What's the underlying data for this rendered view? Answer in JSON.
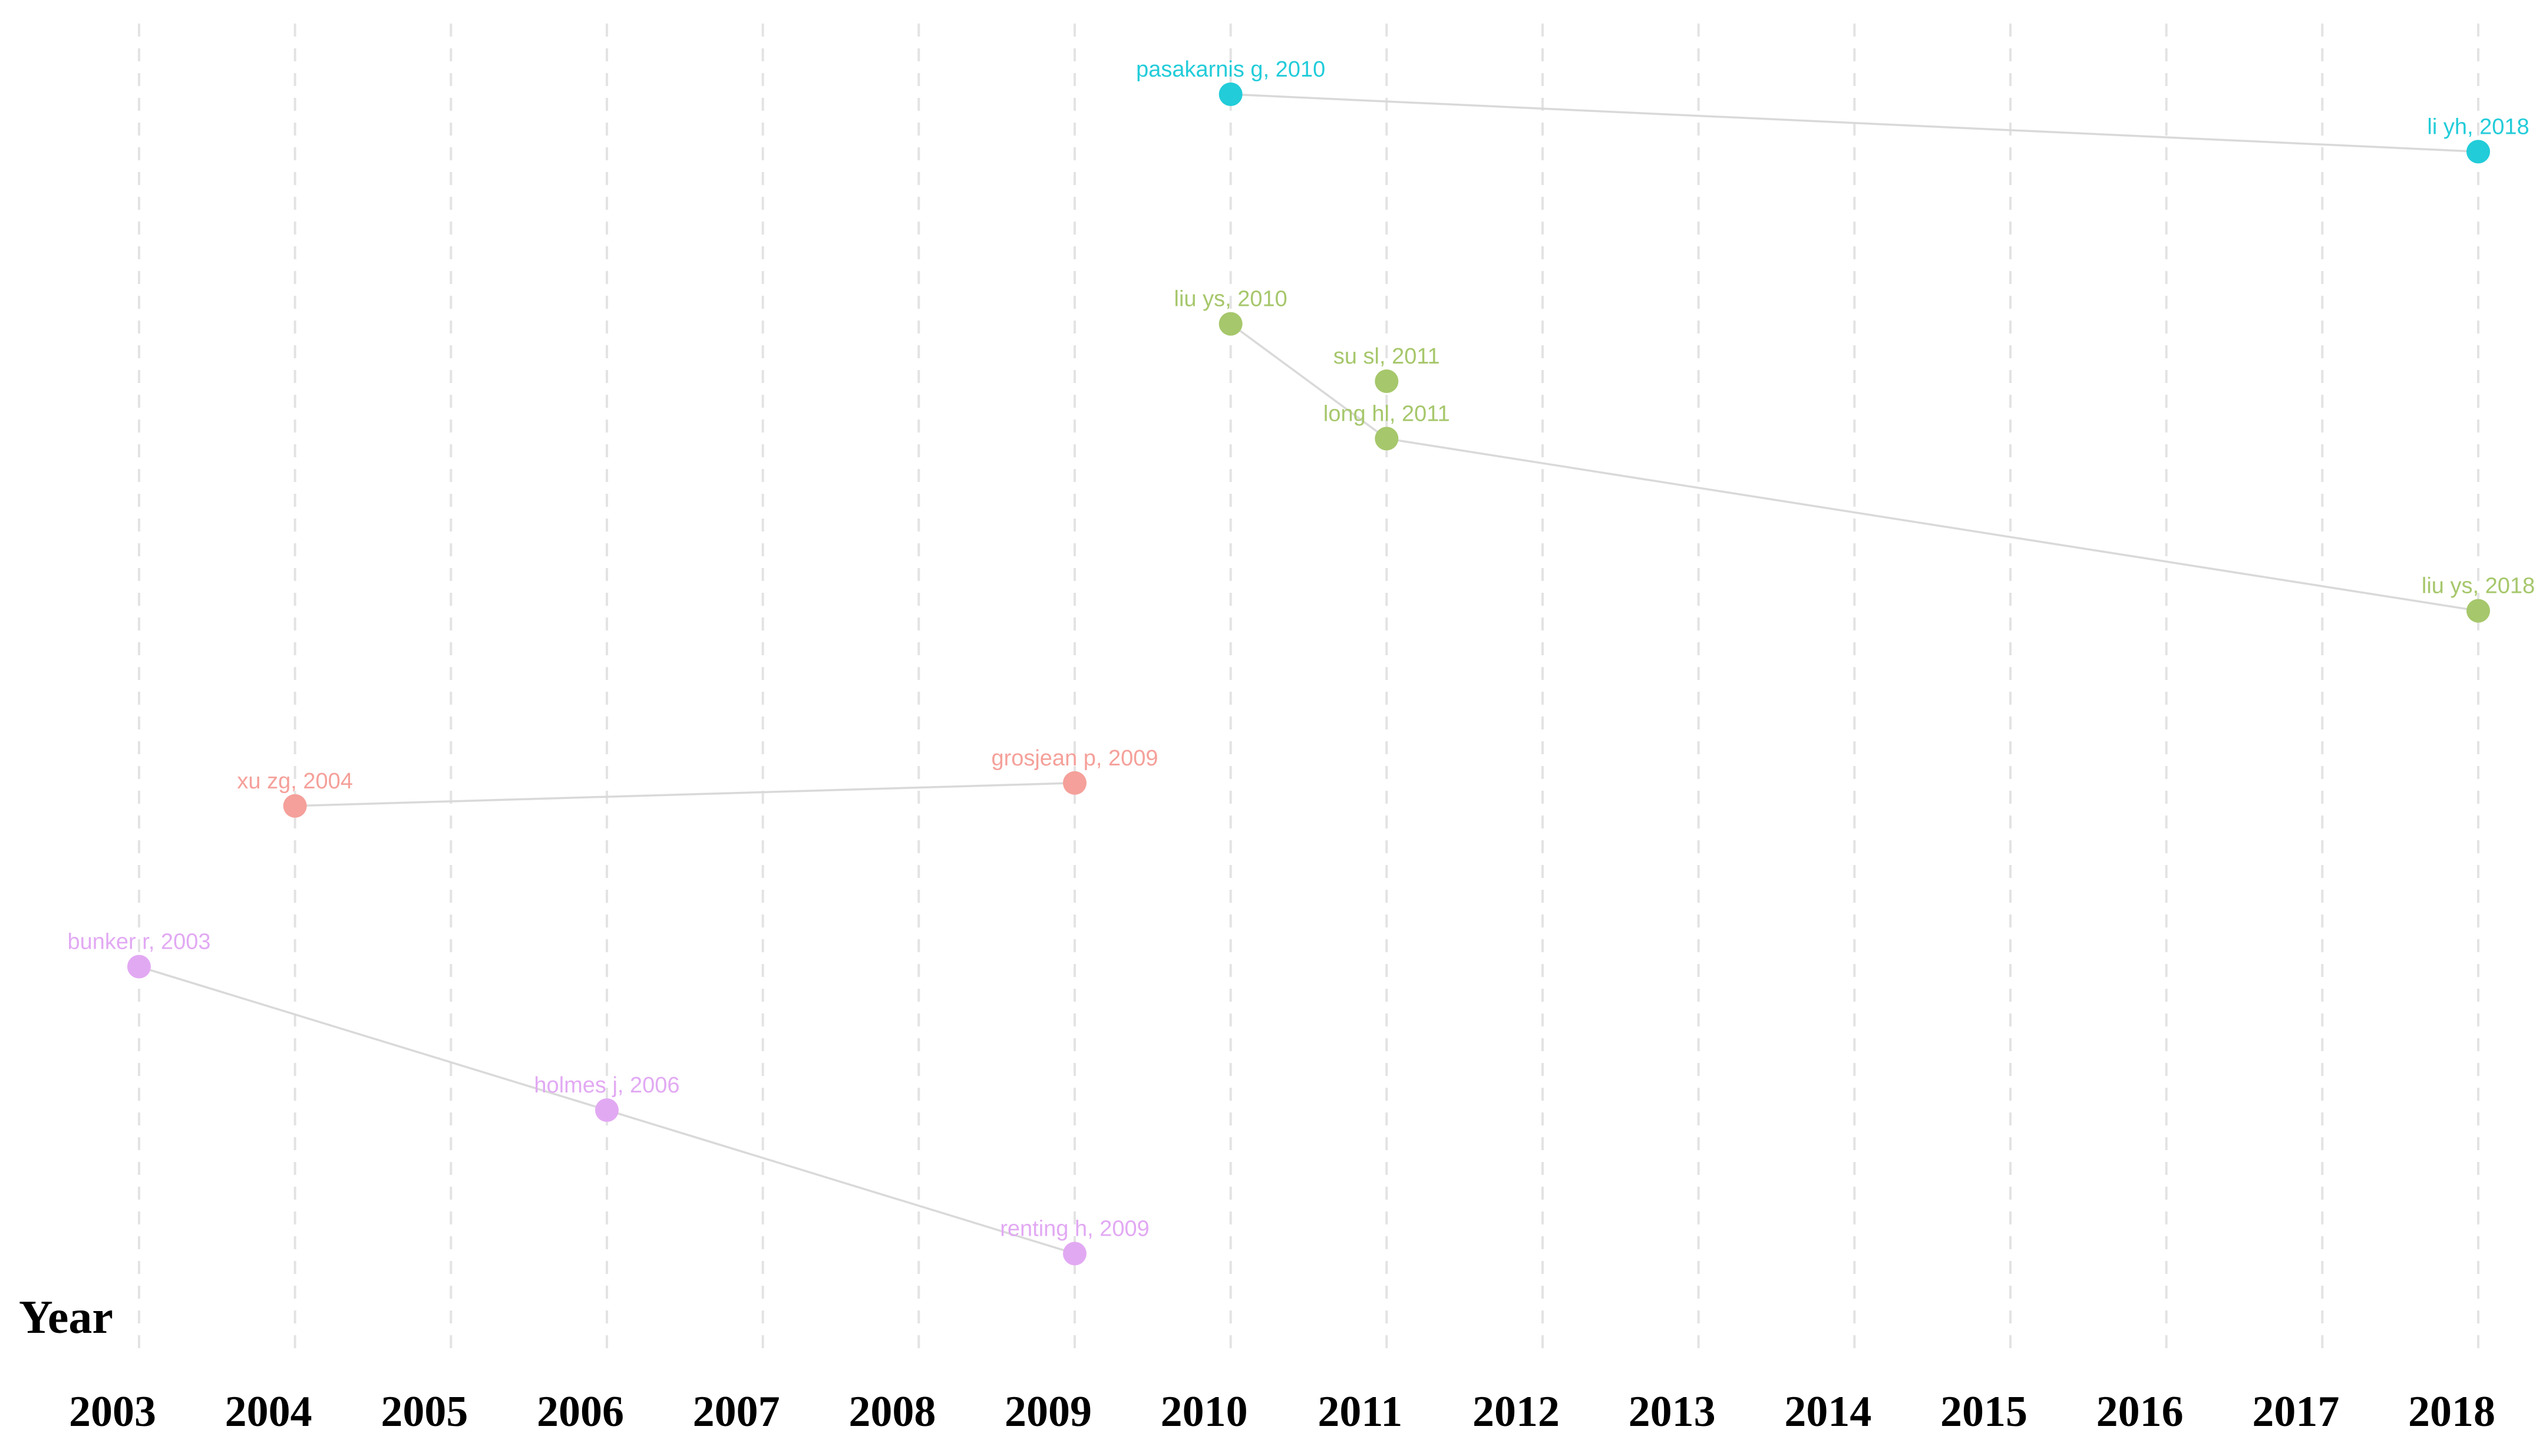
{
  "chart_data": {
    "type": "scatter",
    "title": "",
    "xlabel": "Year",
    "ylabel": "",
    "xlim": [
      2003,
      2018
    ],
    "grid": "vertical dashed",
    "x_ticks": [
      "2003",
      "2004",
      "2005",
      "2006",
      "2007",
      "2008",
      "2009",
      "2010",
      "2011",
      "2012",
      "2013",
      "2014",
      "2015",
      "2016",
      "2017",
      "2018"
    ],
    "series": [
      {
        "name": "cyan",
        "color": "#22CCD9",
        "points": [
          {
            "id": "pasakarnis-2010",
            "label": "pasakarnis g, 2010",
            "year": 2010,
            "rank": 1
          },
          {
            "id": "li-yh-2018",
            "label": "li yh, 2018",
            "year": 2018,
            "rank": 2
          }
        ],
        "links": [
          [
            "pasakarnis-2010",
            "li-yh-2018"
          ]
        ]
      },
      {
        "name": "green",
        "color": "#A6C76B",
        "points": [
          {
            "id": "liu-ys-2010",
            "label": "liu ys, 2010",
            "year": 2010,
            "rank": 5
          },
          {
            "id": "su-sl-2011",
            "label": "su sl, 2011",
            "year": 2011,
            "rank": 6
          },
          {
            "id": "long-hl-2011",
            "label": "long hl, 2011",
            "year": 2011,
            "rank": 7
          },
          {
            "id": "liu-ys-2018",
            "label": "liu ys, 2018",
            "year": 2018,
            "rank": 10
          }
        ],
        "links": [
          [
            "liu-ys-2010",
            "long-hl-2011"
          ],
          [
            "long-hl-2011",
            "liu-ys-2018"
          ]
        ]
      },
      {
        "name": "red",
        "color": "#F5A09A",
        "points": [
          {
            "id": "xu-zg-2004",
            "label": "xu zg, 2004",
            "year": 2004,
            "rank": 13.4
          },
          {
            "id": "grosjean-2009",
            "label": "grosjean p, 2009",
            "year": 2009,
            "rank": 13
          }
        ],
        "links": [
          [
            "xu-zg-2004",
            "grosjean-2009"
          ]
        ]
      },
      {
        "name": "purple",
        "color": "#E2A9F3",
        "points": [
          {
            "id": "bunker-2003",
            "label": "bunker r, 2003",
            "year": 2003,
            "rank": 16.2
          },
          {
            "id": "holmes-2006",
            "label": "holmes j, 2006",
            "year": 2006,
            "rank": 18.7
          },
          {
            "id": "renting-2009",
            "label": "renting h, 2009",
            "year": 2009,
            "rank": 21.2
          }
        ],
        "links": [
          [
            "bunker-2003",
            "holmes-2006"
          ],
          [
            "holmes-2006",
            "renting-2009"
          ]
        ]
      }
    ]
  }
}
